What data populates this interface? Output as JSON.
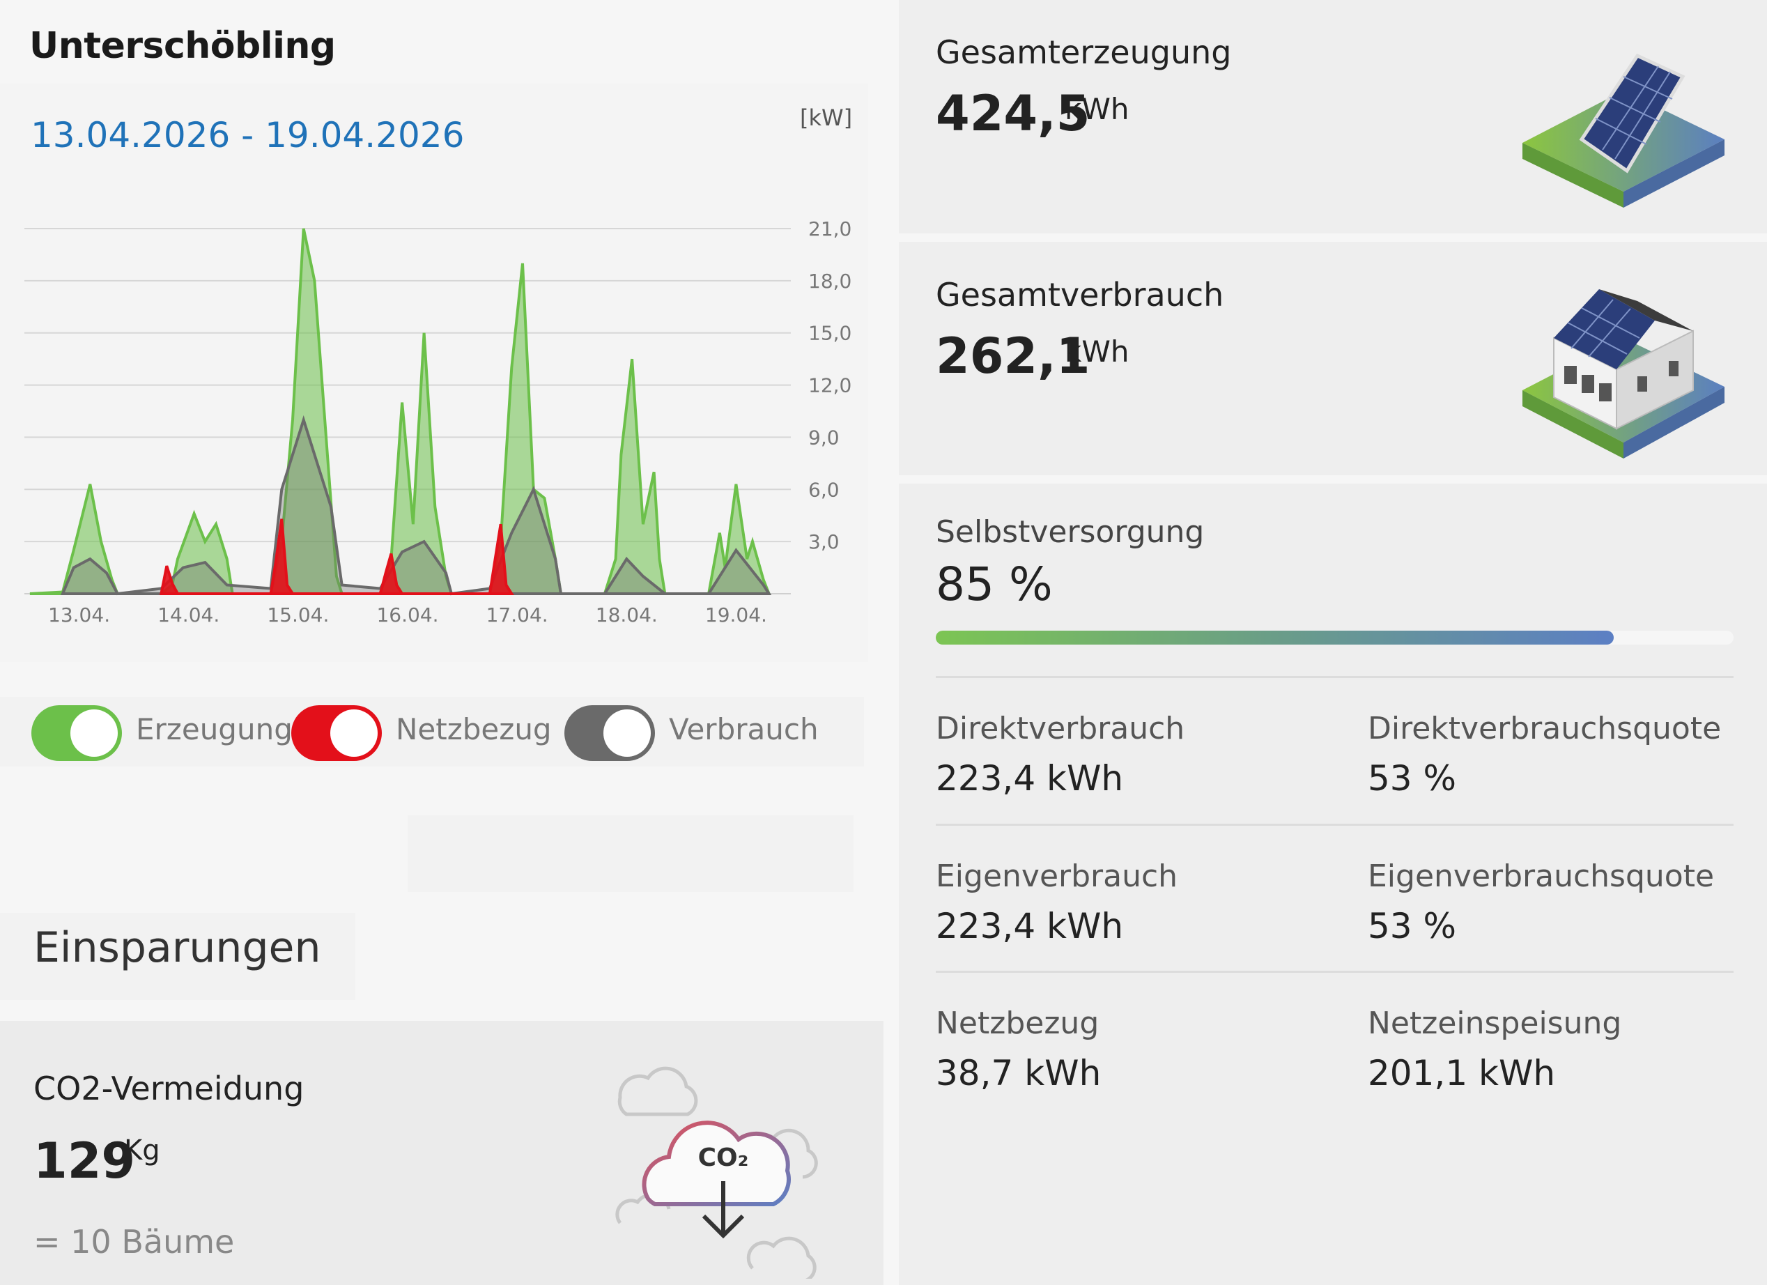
{
  "site": {
    "title": "Unterschöbling"
  },
  "chart_card": {
    "date_range": "13.04.2026 - 19.04.2026",
    "unit": "[kW]"
  },
  "legend": {
    "production_label": "Erzeugung",
    "grid_label": "Netzbezug",
    "consumption_label": "Verbrauch",
    "production_color": "#6cc04a",
    "grid_color": "#e3101a",
    "consumption_color": "#6a6a6a"
  },
  "savings": {
    "title": "Einsparungen",
    "co2_title": "CO2-Vermeidung",
    "co2_value": "129",
    "co2_unit": "Kg",
    "trees": "= 10 Bäume",
    "co2_icon_text": "CO₂"
  },
  "production_total": {
    "label": "Gesamterzeugung",
    "value": "424,5",
    "unit": "kWh"
  },
  "consumption_total": {
    "label": "Gesamtverbrauch",
    "value": "262,1",
    "unit": "kWh"
  },
  "self_supply": {
    "label": "Selbstversorgung",
    "value": "85 %",
    "percent": 85
  },
  "stats": {
    "direct_label": "Direktverbrauch",
    "direct_value": "223,4 kWh",
    "direct_quota_label": "Direktverbrauchsquote",
    "direct_quota_value": "53 %",
    "own_label": "Eigenverbrauch",
    "own_value": "223,4 kWh",
    "own_quota_label": "Eigenverbrauchsquote",
    "own_quota_value": "53 %",
    "grid_label": "Netzbezug",
    "grid_value": "38,7 kWh",
    "feed_label": "Netzeinspeisung",
    "feed_value": "201,1 kWh"
  },
  "chart_data": {
    "type": "area",
    "x_categories": [
      "13.04.",
      "14.04.",
      "15.04.",
      "16.04.",
      "17.04.",
      "18.04.",
      "19.04."
    ],
    "yticks": [
      "21,0",
      "18,0",
      "15,0",
      "12,0",
      "9,0",
      "6,0",
      "3,0"
    ],
    "ylim": [
      0,
      21
    ],
    "unit": "[kW]",
    "series": [
      {
        "name": "Erzeugung",
        "color": "#6cc04a",
        "points": [
          [
            0,
            0
          ],
          [
            0.3,
            0.1
          ],
          [
            0.4,
            2.5
          ],
          [
            0.55,
            6.3
          ],
          [
            0.65,
            3
          ],
          [
            0.75,
            0.8
          ],
          [
            0.8,
            0
          ],
          [
            1.2,
            0
          ],
          [
            1.3,
            0.5
          ],
          [
            1.35,
            2
          ],
          [
            1.5,
            4.6
          ],
          [
            1.6,
            3
          ],
          [
            1.7,
            4
          ],
          [
            1.8,
            2
          ],
          [
            1.85,
            0
          ],
          [
            2.2,
            0
          ],
          [
            2.3,
            3
          ],
          [
            2.4,
            10
          ],
          [
            2.5,
            21
          ],
          [
            2.6,
            18
          ],
          [
            2.7,
            9.5
          ],
          [
            2.8,
            1
          ],
          [
            2.85,
            0
          ],
          [
            3.2,
            0
          ],
          [
            3.3,
            2
          ],
          [
            3.4,
            11
          ],
          [
            3.5,
            4
          ],
          [
            3.6,
            15
          ],
          [
            3.7,
            5
          ],
          [
            3.8,
            1
          ],
          [
            3.85,
            0
          ],
          [
            4.2,
            0
          ],
          [
            4.3,
            3
          ],
          [
            4.4,
            13
          ],
          [
            4.5,
            19
          ],
          [
            4.6,
            6
          ],
          [
            4.7,
            5.5
          ],
          [
            4.8,
            2
          ],
          [
            4.85,
            0
          ],
          [
            5.25,
            0
          ],
          [
            5.35,
            2
          ],
          [
            5.4,
            8
          ],
          [
            5.5,
            13.5
          ],
          [
            5.6,
            4
          ],
          [
            5.7,
            7
          ],
          [
            5.75,
            2
          ],
          [
            5.8,
            0
          ],
          [
            6.2,
            0
          ],
          [
            6.3,
            3.5
          ],
          [
            6.35,
            1.5
          ],
          [
            6.45,
            6.3
          ],
          [
            6.55,
            2
          ],
          [
            6.6,
            3
          ],
          [
            6.7,
            0.8
          ],
          [
            6.75,
            0
          ]
        ]
      },
      {
        "name": "Netzbezug",
        "color": "#e3101a",
        "points": [
          [
            1.2,
            0
          ],
          [
            1.25,
            1.6
          ],
          [
            1.3,
            0.6
          ],
          [
            1.35,
            0
          ],
          [
            2.2,
            0
          ],
          [
            2.25,
            2
          ],
          [
            2.3,
            4.3
          ],
          [
            2.35,
            0.5
          ],
          [
            2.4,
            0
          ],
          [
            3.2,
            0
          ],
          [
            3.25,
            1.2
          ],
          [
            3.3,
            2.3
          ],
          [
            3.35,
            0.5
          ],
          [
            3.4,
            0
          ],
          [
            4.2,
            0
          ],
          [
            4.25,
            2
          ],
          [
            4.3,
            4
          ],
          [
            4.35,
            0.5
          ],
          [
            4.4,
            0
          ]
        ]
      },
      {
        "name": "Verbrauch",
        "color": "#6a6a6a",
        "points": [
          [
            0.3,
            0
          ],
          [
            0.4,
            1.5
          ],
          [
            0.55,
            2
          ],
          [
            0.7,
            1.2
          ],
          [
            0.8,
            0
          ],
          [
            1.2,
            0.3
          ],
          [
            1.4,
            1.5
          ],
          [
            1.6,
            1.8
          ],
          [
            1.8,
            0.5
          ],
          [
            2.2,
            0.3
          ],
          [
            2.3,
            6
          ],
          [
            2.5,
            10
          ],
          [
            2.6,
            8
          ],
          [
            2.75,
            5
          ],
          [
            2.85,
            0.5
          ],
          [
            3.2,
            0.3
          ],
          [
            3.4,
            2.4
          ],
          [
            3.6,
            3
          ],
          [
            3.8,
            1.2
          ],
          [
            3.85,
            0
          ],
          [
            4.2,
            0.3
          ],
          [
            4.4,
            3.5
          ],
          [
            4.6,
            6
          ],
          [
            4.8,
            2
          ],
          [
            4.85,
            0
          ],
          [
            5.25,
            0
          ],
          [
            5.45,
            2
          ],
          [
            5.6,
            1
          ],
          [
            5.8,
            0
          ],
          [
            6.2,
            0
          ],
          [
            6.45,
            2.5
          ],
          [
            6.7,
            0.5
          ],
          [
            6.75,
            0
          ]
        ]
      }
    ]
  }
}
